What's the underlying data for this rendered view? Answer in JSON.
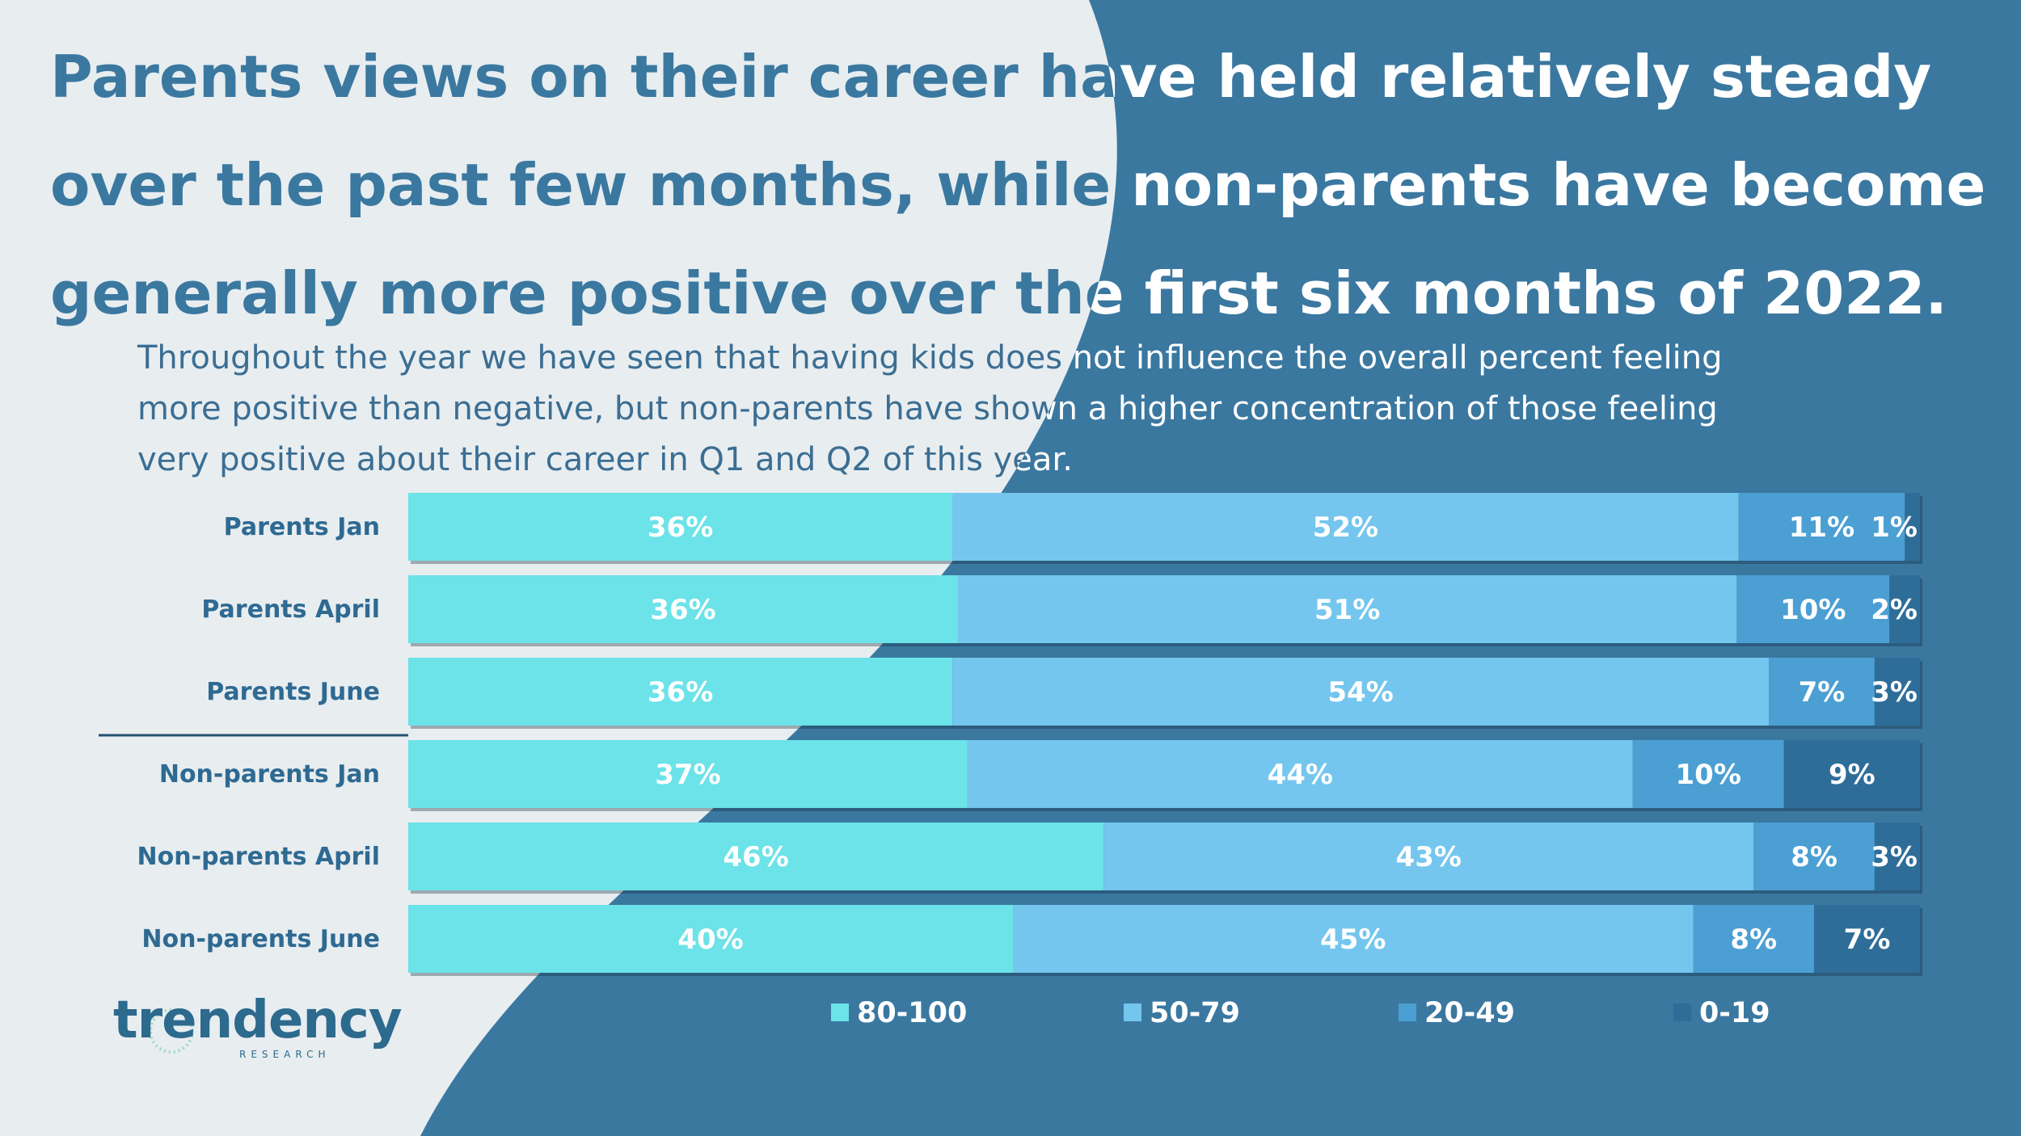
{
  "title": "Parents views on their career have held relatively steady over the past few months, while non-parents have become generally more positive over the first six months of 2022.",
  "subtitle": "Throughout the year we have seen that having kids does not influence the overall percent feeling more positive than negative, but non-parents have shown a higher concentration of those feeling very positive about their career in Q1 and Q2 of this year.",
  "logo": {
    "name": "trendency",
    "sub": "RESEARCH"
  },
  "colors": {
    "background_light": "#e8edf0",
    "background_dark": "#3a78a0",
    "title_dark": "#3a78a0",
    "row_label": "#2e6a92"
  },
  "chart_data": {
    "type": "bar",
    "orientation": "horizontal",
    "stacked": true,
    "categories": [
      "Parents Jan",
      "Parents April",
      "Parents June",
      "Non-parents Jan",
      "Non-parents April",
      "Non-parents June"
    ],
    "series": [
      {
        "name": "80-100",
        "color": "#6be3e8",
        "values": [
          36,
          36,
          36,
          37,
          46,
          40
        ],
        "labels": [
          "36%",
          "36%",
          "36%",
          "37%",
          "46%",
          "40%"
        ]
      },
      {
        "name": "50-79",
        "color": "#74c6ee",
        "values": [
          52,
          51,
          54,
          44,
          43,
          45
        ],
        "labels": [
          "52%",
          "51%",
          "54%",
          "44%",
          "43%",
          "45%"
        ]
      },
      {
        "name": "20-49",
        "color": "#4b9fd3",
        "values": [
          11,
          10,
          7,
          10,
          8,
          8
        ],
        "labels": [
          "11%",
          "10%",
          "7%",
          "10%",
          "8%",
          "8%"
        ]
      },
      {
        "name": "0-19",
        "color": "#2f6d99",
        "values": [
          1,
          2,
          3,
          9,
          3,
          7
        ],
        "labels": [
          "1%",
          "2%",
          "3%",
          "9%",
          "3%",
          "7%"
        ]
      }
    ],
    "xlim": [
      0,
      100
    ],
    "legend": "bottom",
    "grid": false
  }
}
